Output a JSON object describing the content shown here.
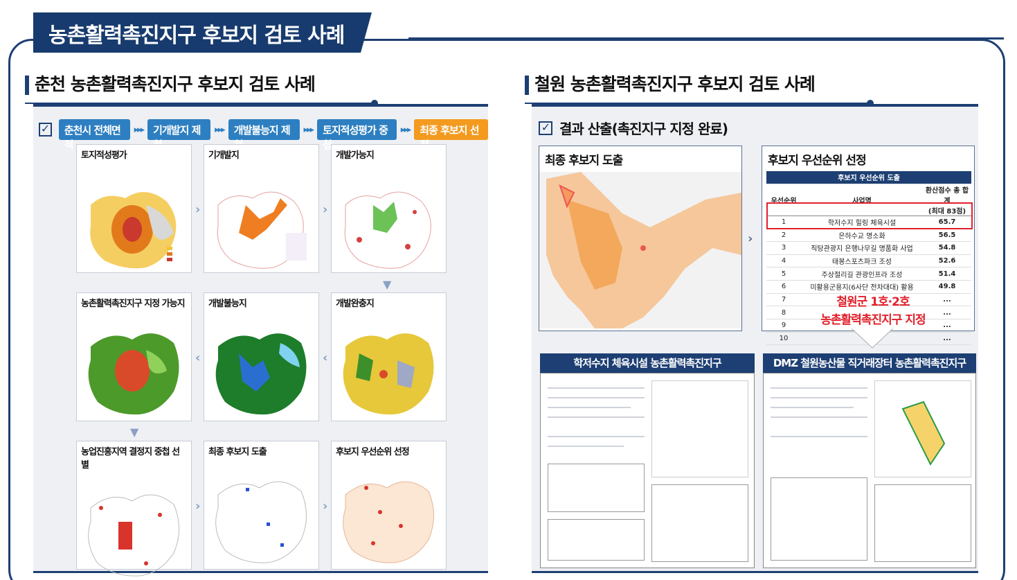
{
  "main_title": "농촌활력촉진지구 후보지 검토 사례",
  "left": {
    "heading": "춘천 농촌활력촉진지구 후보지 검토 사례",
    "flow_steps": [
      "춘천시 전체면적",
      "기개발지 제척",
      "개발불능지 제척",
      "토지적성평가 중첩",
      "최종 후보지 선정"
    ],
    "flow_separator": "▸▸▸",
    "maps": [
      "토지적성평가",
      "기개발지",
      "개발가능지",
      "농촌활력촉진지구 지정 가능지",
      "개발불능지",
      "개발완충지",
      "농업진흥지역 결정지 중첩 선별",
      "최종 후보지 도출",
      "후보지 우선순위 선정"
    ]
  },
  "right": {
    "heading": "철원 농촌활력촉진지구 후보지 검토 사례",
    "result_title": "결과 산출(촉진지구 지정 완료)",
    "final_box_title": "최종 후보지 도출",
    "priority_box_title": "후보지 우선순위 선정",
    "table": {
      "caption": "후보지 우선순위 도출",
      "headers": [
        "우선순위",
        "사업명",
        "환산점수 총 합계",
        "(최대 83점)"
      ],
      "rows": [
        {
          "rank": "1",
          "name": "학저수지 힐링 체육시설",
          "score": "65.7"
        },
        {
          "rank": "2",
          "name": "은하수교 명소화",
          "score": "56.5"
        },
        {
          "rank": "3",
          "name": "직탕관광지 은행나무길 명품화 사업",
          "score": "54.8"
        },
        {
          "rank": "4",
          "name": "태봉스포츠파크 조성",
          "score": "52.6"
        },
        {
          "rank": "5",
          "name": "주상절리길 관광인프라 조성",
          "score": "51.4"
        },
        {
          "rank": "6",
          "name": "미활용군용지(6사단 전차대대) 활용",
          "score": "49.8"
        },
        {
          "rank": "7",
          "name": "...",
          "score": "..."
        },
        {
          "rank": "8",
          "name": "",
          "score": "..."
        },
        {
          "rank": "9",
          "name": "",
          "score": "..."
        },
        {
          "rank": "10",
          "name": "",
          "score": "..."
        }
      ]
    },
    "callout_line1": "철원군 1호·2호",
    "callout_line2": "농촌활력촉진지구 지정",
    "doc1_title": "학저수지 체육시설 농촌활력촉진지구",
    "doc2_title": "DMZ 철원농산물 직거래장터 농촌활력촉진지구"
  }
}
